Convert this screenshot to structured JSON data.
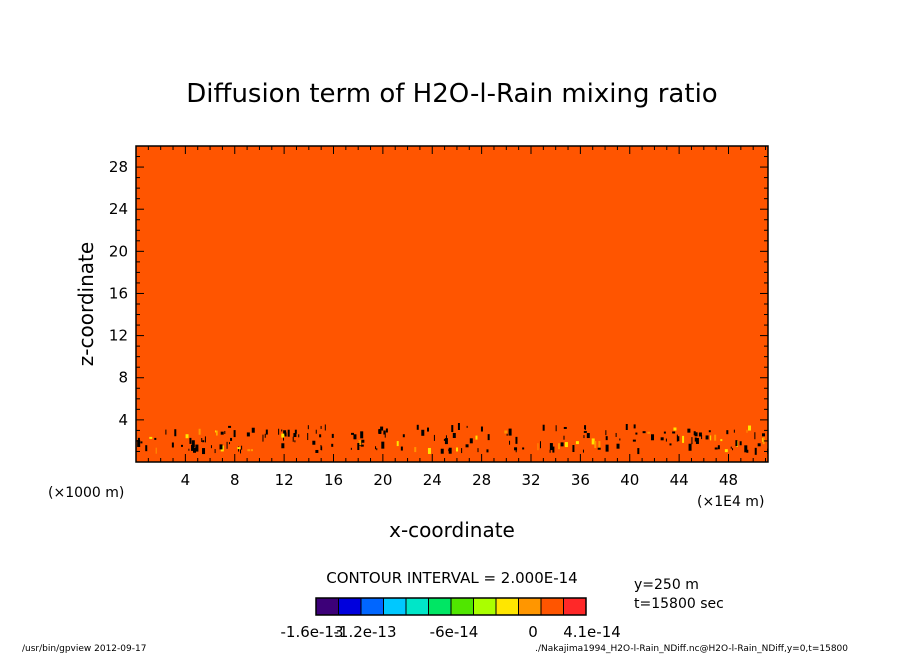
{
  "chart_data": {
    "type": "heatmap",
    "title": "Diffusion term of H2O-l-Rain mixing ratio",
    "xlabel": "x-coordinate",
    "ylabel": "z-coordinate",
    "x_unit_left": "(×1000 m)",
    "x_unit_right": "(×1E4 m)",
    "xlim": [
      0,
      51.2
    ],
    "ylim": [
      0,
      30
    ],
    "x_ticks": [
      4,
      8,
      12,
      16,
      20,
      24,
      28,
      32,
      36,
      40,
      44,
      48
    ],
    "y_ticks": [
      4,
      8,
      12,
      16,
      20,
      24,
      28
    ],
    "background_level_color": "#ff5500",
    "field_description_value": 0,
    "contour_interval": "CONTOUR INTERVAL = 2.000E-14",
    "colorbar": {
      "colors": [
        "#3c0078",
        "#0000dd",
        "#0066ff",
        "#00c8ff",
        "#00e6c8",
        "#00e664",
        "#50e600",
        "#aaff00",
        "#ffe600",
        "#ff9600",
        "#ff5500",
        "#ff2828"
      ],
      "labels": [
        "-1.6e-13",
        "-1.2e-13",
        "-6e-14",
        "0",
        "4.1e-14"
      ]
    },
    "y_info": "y=250 m",
    "t_info": "t=15800 sec",
    "footer_left": "/usr/bin/gpview  2012-09-17",
    "footer_right": "./Nakajima1994_H2O-l-Rain_NDiff.nc@H2O-l-Rain_NDiff,y=0,t=15800"
  }
}
